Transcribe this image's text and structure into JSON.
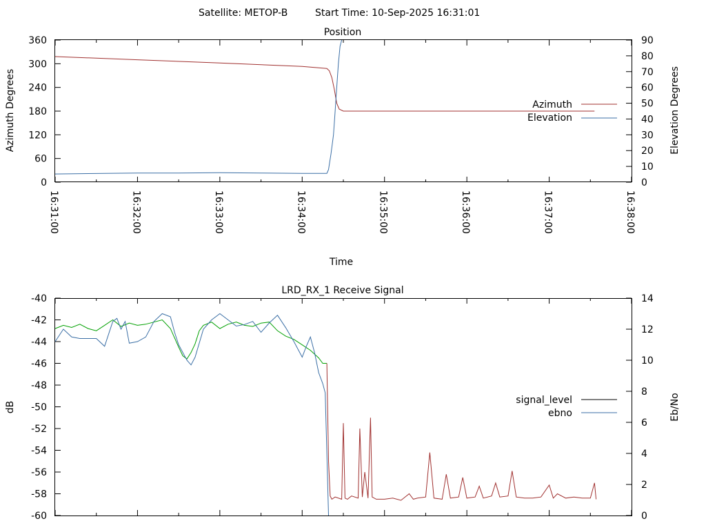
{
  "header": {
    "satellite_label": "Satellite: METOP-B",
    "start_time_label": "Start Time: 10-Sep-2025 16:31:01"
  },
  "colors": {
    "azimuth": "#a0302f",
    "elevation": "#3a6ea5",
    "ebno_green": "#00a000",
    "ebno_blue": "#3a6ea5",
    "signal_red": "#a0302f",
    "signal_key": "#000000"
  },
  "chart_data": [
    {
      "type": "line",
      "title": "Position",
      "xlabel": "Time",
      "ylabel": "Azimuth Degrees",
      "y2label": "Elevation Degrees",
      "x_ticks": [
        "16:31:00",
        "16:32:00",
        "16:33:00",
        "16:34:00",
        "16:35:00",
        "16:36:00",
        "16:37:00",
        "16:38:00"
      ],
      "x_range_minutes": [
        0,
        7
      ],
      "ylim": [
        0,
        360
      ],
      "y_ticks": [
        "0",
        "60",
        "120",
        "180",
        "240",
        "300",
        "360"
      ],
      "y2lim": [
        0,
        90
      ],
      "y2_ticks": [
        "0",
        "10",
        "20",
        "30",
        "40",
        "50",
        "60",
        "70",
        "80",
        "90"
      ],
      "legend_position": "right",
      "series": [
        {
          "name": "Azimuth",
          "axis": "y",
          "x": [
            0,
            1,
            2,
            3,
            3.3,
            3.33,
            3.36,
            3.39,
            3.42,
            3.45,
            3.5,
            4,
            5,
            6,
            6.55
          ],
          "values": [
            318,
            310,
            302,
            293,
            288,
            282,
            265,
            235,
            200,
            185,
            180,
            180,
            180,
            180,
            180
          ]
        },
        {
          "name": "Elevation",
          "axis": "y2",
          "x": [
            0,
            0.5,
            1,
            1.5,
            2,
            2.5,
            3,
            3.3,
            3.32,
            3.35,
            3.38,
            3.4,
            3.42,
            3.44,
            3.46,
            3.48
          ],
          "values": [
            5.2,
            5.5,
            5.8,
            5.8,
            6.0,
            5.8,
            5.6,
            5.6,
            8,
            18,
            30,
            45,
            60,
            75,
            86,
            90
          ]
        }
      ]
    },
    {
      "type": "line",
      "title": "LRD_RX_1 Receive Signal",
      "xlabel": "",
      "ylabel": "dB",
      "y2label": "Eb/No",
      "x_range_minutes": [
        0,
        7
      ],
      "ylim": [
        -60,
        -40
      ],
      "y_ticks": [
        "-60",
        "-58",
        "-56",
        "-54",
        "-52",
        "-50",
        "-48",
        "-46",
        "-44",
        "-42",
        "-40"
      ],
      "y2lim": [
        0,
        14
      ],
      "y2_ticks": [
        "0",
        "2",
        "4",
        "6",
        "8",
        "10",
        "12",
        "14"
      ],
      "legend_position": "right",
      "legend": [
        "signal_level",
        "ebno"
      ],
      "series": [
        {
          "name": "signal_level",
          "axis": "y",
          "x": [
            0,
            0.1,
            0.2,
            0.3,
            0.4,
            0.5,
            0.6,
            0.7,
            0.8,
            0.9,
            1.0,
            1.1,
            1.2,
            1.3,
            1.4,
            1.5,
            1.55,
            1.6,
            1.65,
            1.7,
            1.75,
            1.8,
            1.9,
            2.0,
            2.1,
            2.2,
            2.3,
            2.4,
            2.5,
            2.6,
            2.7,
            2.8,
            2.9,
            3.0,
            3.1,
            3.2,
            3.25,
            3.3
          ],
          "values": [
            -42.8,
            -42.5,
            -42.7,
            -42.4,
            -42.8,
            -43.0,
            -42.5,
            -42.0,
            -42.6,
            -42.3,
            -42.5,
            -42.4,
            -42.2,
            -42.0,
            -42.8,
            -44.5,
            -45.3,
            -45.6,
            -45.0,
            -44.2,
            -43.0,
            -42.5,
            -42.2,
            -42.8,
            -42.4,
            -42.2,
            -42.5,
            -42.6,
            -42.3,
            -42.2,
            -43.0,
            -43.5,
            -43.8,
            -44.3,
            -44.8,
            -45.5,
            -46.0,
            -46.0
          ]
        },
        {
          "name": "ebno",
          "axis": "y2",
          "x": [
            0,
            0.1,
            0.2,
            0.3,
            0.4,
            0.5,
            0.6,
            0.7,
            0.75,
            0.8,
            0.85,
            0.9,
            1.0,
            1.1,
            1.2,
            1.3,
            1.4,
            1.45,
            1.5,
            1.6,
            1.65,
            1.7,
            1.8,
            1.9,
            2.0,
            2.1,
            2.2,
            2.3,
            2.4,
            2.5,
            2.6,
            2.7,
            2.8,
            2.9,
            3.0,
            3.05,
            3.1,
            3.15,
            3.2,
            3.25,
            3.28,
            3.3,
            3.32
          ],
          "values": [
            11.2,
            12.0,
            11.5,
            11.4,
            11.4,
            11.4,
            10.9,
            12.5,
            12.7,
            12.0,
            12.5,
            11.1,
            11.2,
            11.5,
            12.5,
            13.0,
            12.8,
            11.8,
            11.0,
            10.0,
            9.7,
            10.2,
            12.0,
            12.6,
            13.0,
            12.6,
            12.2,
            12.3,
            12.5,
            11.8,
            12.4,
            12.9,
            12.1,
            11.2,
            10.2,
            10.9,
            11.5,
            10.5,
            9.2,
            8.5,
            7.9,
            4.0,
            0
          ]
        },
        {
          "name": "",
          "axis": "y",
          "x": [
            3.3,
            3.32,
            3.34,
            3.36,
            3.4,
            3.48,
            3.5,
            3.52,
            3.55,
            3.6,
            3.68,
            3.7,
            3.73,
            3.76,
            3.8,
            3.83,
            3.85,
            3.9,
            4.0,
            4.1,
            4.2,
            4.3,
            4.35,
            4.4,
            4.5,
            4.55,
            4.6,
            4.7,
            4.75,
            4.8,
            4.9,
            4.95,
            5.0,
            5.1,
            5.15,
            5.2,
            5.3,
            5.35,
            5.4,
            5.5,
            5.55,
            5.6,
            5.7,
            5.8,
            5.9,
            6.0,
            6.05,
            6.1,
            6.2,
            6.3,
            6.4,
            6.5,
            6.55,
            6.57
          ],
          "values": [
            -46.0,
            -55.0,
            -58.2,
            -58.5,
            -58.3,
            -58.5,
            -51.5,
            -58.4,
            -58.5,
            -58.2,
            -58.4,
            -52.0,
            -58.3,
            -56.0,
            -58.4,
            -51.0,
            -58.3,
            -58.5,
            -58.5,
            -58.4,
            -58.6,
            -58.0,
            -58.5,
            -58.4,
            -58.3,
            -54.2,
            -58.4,
            -58.5,
            -56.2,
            -58.4,
            -58.3,
            -56.5,
            -58.4,
            -58.3,
            -57.3,
            -58.4,
            -58.2,
            -57.0,
            -58.3,
            -58.2,
            -55.9,
            -58.3,
            -58.4,
            -58.4,
            -58.3,
            -57.2,
            -58.4,
            -58.0,
            -58.4,
            -58.3,
            -58.4,
            -58.4,
            -57.0,
            -58.5
          ]
        }
      ]
    }
  ]
}
